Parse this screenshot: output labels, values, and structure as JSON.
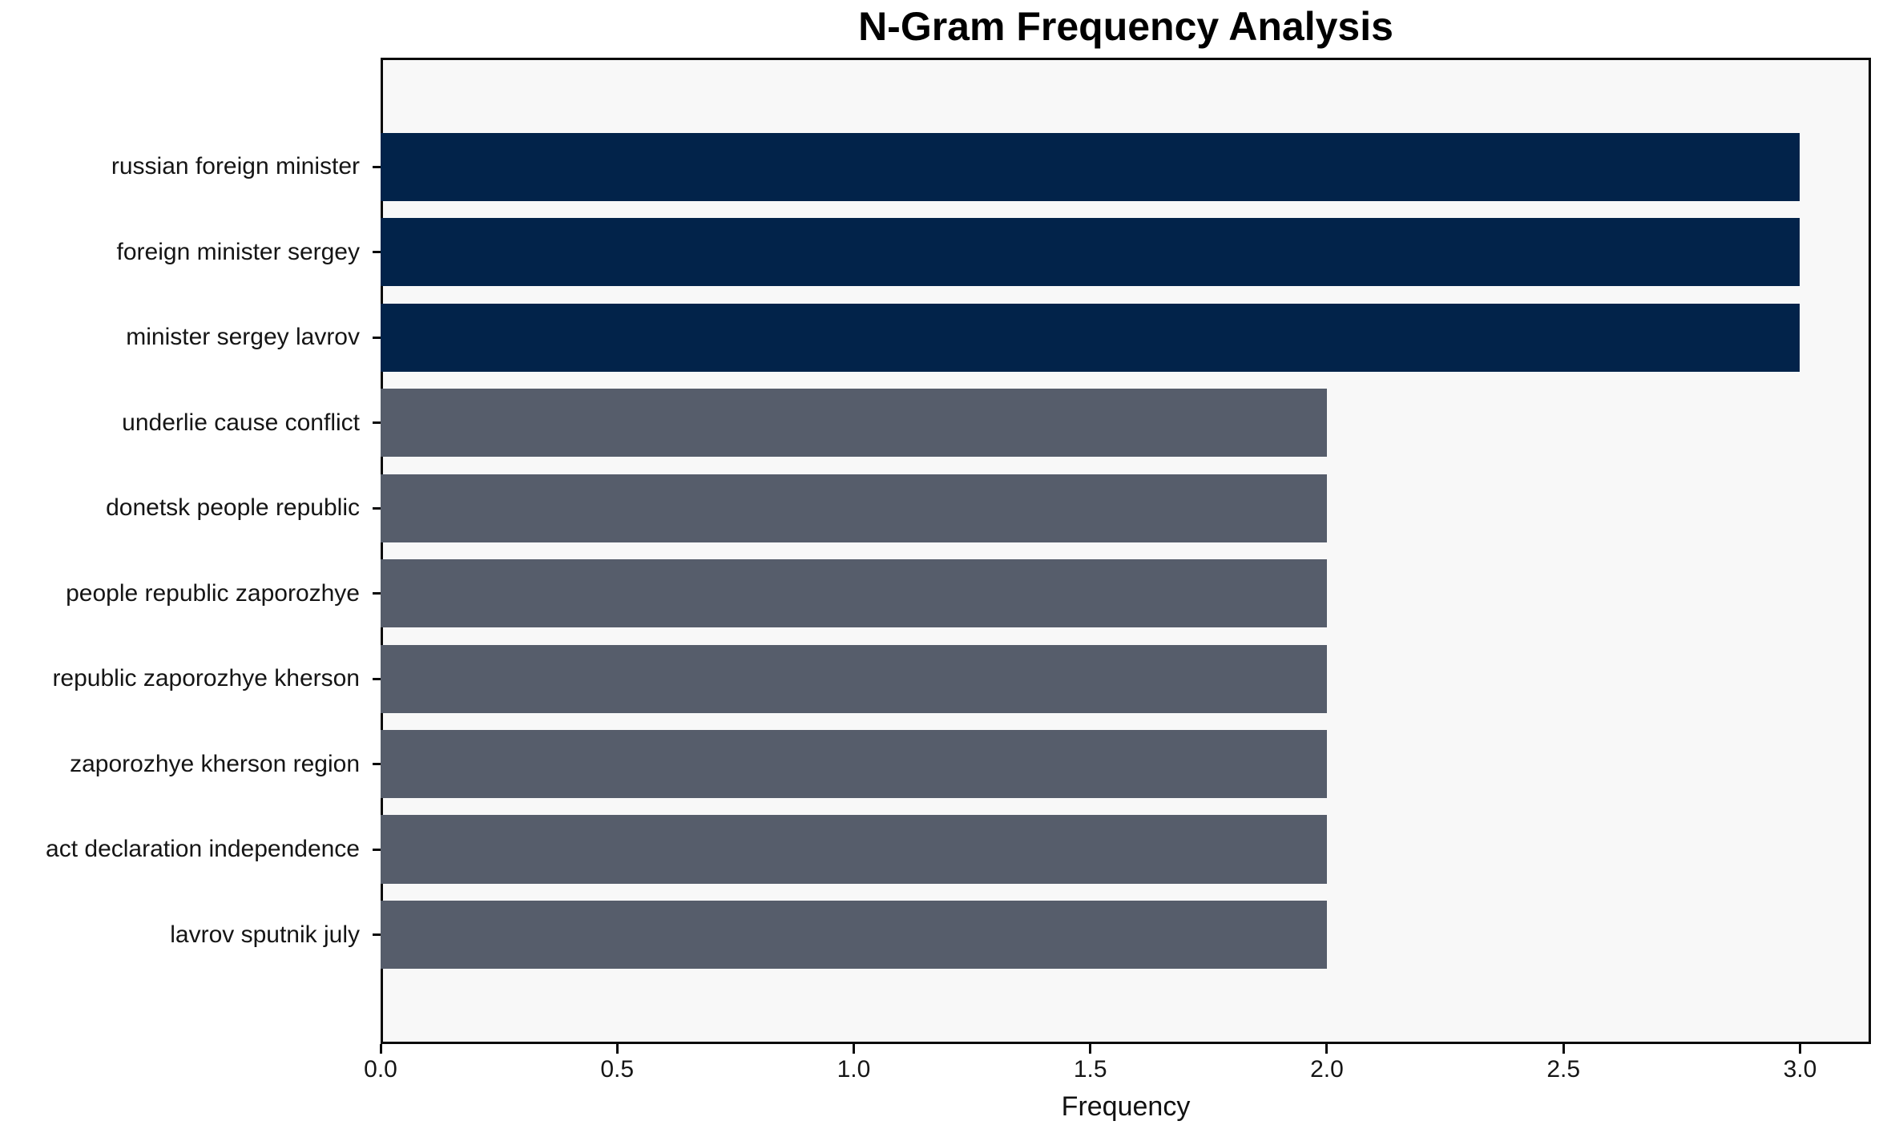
{
  "chart_data": {
    "type": "bar",
    "orientation": "horizontal",
    "title": "N-Gram Frequency Analysis",
    "xlabel": "Frequency",
    "ylabel": "",
    "categories": [
      "russian foreign minister",
      "foreign minister sergey",
      "minister sergey lavrov",
      "underlie cause conflict",
      "donetsk people republic",
      "people republic zaporozhye",
      "republic zaporozhye kherson",
      "zaporozhye kherson region",
      "act declaration independence",
      "lavrov sputnik july"
    ],
    "values": [
      3,
      3,
      3,
      2,
      2,
      2,
      2,
      2,
      2,
      2
    ],
    "bar_colors": [
      "#02234a",
      "#02234a",
      "#02234a",
      "#565d6b",
      "#565d6b",
      "#565d6b",
      "#565d6b",
      "#565d6b",
      "#565d6b",
      "#565d6b"
    ],
    "xlim": [
      0,
      3.15
    ],
    "xticks": [
      0.0,
      0.5,
      1.0,
      1.5,
      2.0,
      2.5,
      3.0
    ],
    "xtick_labels": [
      "0.0",
      "0.5",
      "1.0",
      "1.5",
      "2.0",
      "2.5",
      "3.0"
    ],
    "grid": false,
    "legend": null,
    "colors": {
      "highlight_bar": "#02234a",
      "default_bar": "#565d6b",
      "plot_background": "#f8f8f8",
      "page_background": "#ffffff",
      "spine": "#0a0a0a",
      "text": "#151515"
    }
  }
}
